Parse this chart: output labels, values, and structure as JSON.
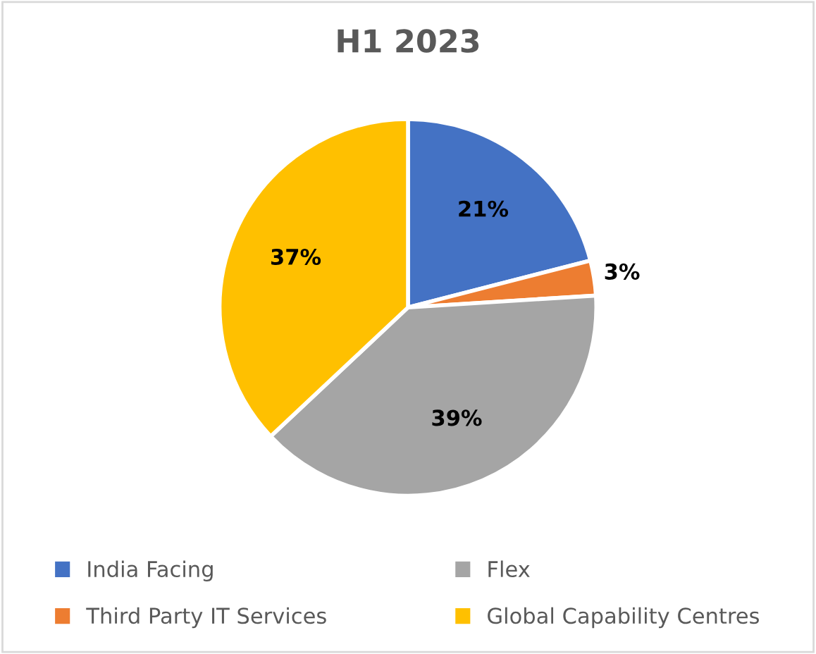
{
  "chart_data": {
    "type": "pie",
    "title": "H1 2023",
    "categories": [
      "India Facing",
      "Third Party IT Services",
      "Flex",
      "Global Capability Centres"
    ],
    "values": [
      21,
      3,
      39,
      37
    ],
    "colors": [
      "#4472c4",
      "#ed7d31",
      "#a5a5a5",
      "#ffc000"
    ],
    "value_labels": [
      "21%",
      "3%",
      "39%",
      "37%"
    ],
    "legend": "bottom"
  }
}
